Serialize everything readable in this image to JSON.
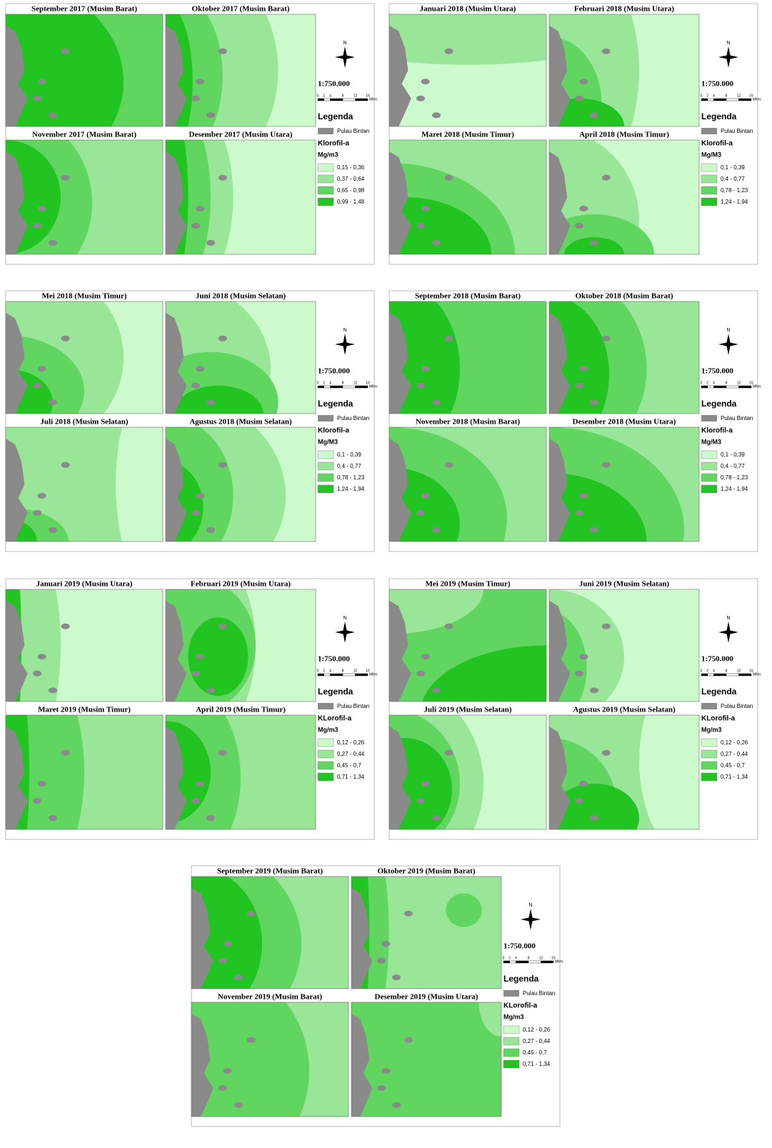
{
  "panels": [
    {
      "maps": [
        "September 2017 (Musim Barat)",
        "Oktober 2017 (Musim Barat)",
        "November 2017 (Musim Barat)",
        "Desember 2017 (Musim Utara)"
      ],
      "north": "N",
      "scale": "1:750.000",
      "scale_bar": {
        "ticks": [
          0,
          2,
          4,
          8,
          12,
          16
        ],
        "unit": "Miles"
      },
      "legend": {
        "title": "Legenda",
        "island": "Pulau Bintan",
        "variable": "Klorofil-a",
        "unit": "Mg/m3",
        "classes": [
          {
            "label": "0,15 - 0,36",
            "color": "#ccfacc"
          },
          {
            "label": "0,37 - 0,64",
            "color": "#99e699"
          },
          {
            "label": "0,65 - 0,98",
            "color": "#60d660"
          },
          {
            "label": "0,99 - 1,48",
            "color": "#22c422"
          }
        ]
      }
    },
    {
      "maps": [
        "Januari 2018 (Musim Utara)",
        "Februari 2018 (Musim Utara)",
        "Maret 2018 (Musim Timur)",
        "April 2018 (Musim Timur)"
      ],
      "north": "N",
      "scale": "1:750.000",
      "scale_bar": {
        "ticks": [
          0,
          2,
          4,
          8,
          12,
          16
        ],
        "unit": "Miles"
      },
      "legend": {
        "title": "Legenda",
        "island": "Pulau Bintan",
        "variable": "Klorofil-a",
        "unit": "Mg/M3",
        "classes": [
          {
            "label": "0,1 - 0,39",
            "color": "#ccfacc"
          },
          {
            "label": "0,4 - 0,77",
            "color": "#99e699"
          },
          {
            "label": "0,78 - 1,23",
            "color": "#60d660"
          },
          {
            "label": "1,24 - 1,94",
            "color": "#22c422"
          }
        ]
      }
    },
    {
      "maps": [
        "Mei 2018 (Musim Timur)",
        "Juni 2018 (Musim Selatan)",
        "Juli 2018 (Musim Selatan)",
        "Agustus 2018 (Musim Selatan)"
      ],
      "north": "N",
      "scale": "1:750.000",
      "scale_bar": {
        "ticks": [
          0,
          2,
          4,
          8,
          12,
          16
        ],
        "unit": "Miles"
      },
      "legend": {
        "title": "Legenda",
        "island": "Pulau Bintan",
        "variable": "Klorofil-a",
        "unit": "Mg/M3",
        "classes": [
          {
            "label": "0,1 - 0,39",
            "color": "#ccfacc"
          },
          {
            "label": "0,4 - 0,77",
            "color": "#99e699"
          },
          {
            "label": "0,78 - 1,23",
            "color": "#60d660"
          },
          {
            "label": "1,24 - 1,94",
            "color": "#22c422"
          }
        ]
      }
    },
    {
      "maps": [
        "September 2018 (Musim Barat)",
        "Oktober 2018 (Musim Barat)",
        "November 2018 (Musim Barat)",
        "Desember 2018 (Musim Utara)"
      ],
      "north": "N",
      "scale": "1:750.000",
      "scale_bar": {
        "ticks": [
          0,
          2,
          4,
          8,
          12,
          16
        ],
        "unit": "Miles"
      },
      "legend": {
        "title": "Legenda",
        "island": "Pulau Bintan",
        "variable": "Klorofil-a",
        "unit": "Mg/M3",
        "classes": [
          {
            "label": "0,1 - 0,39",
            "color": "#ccfacc"
          },
          {
            "label": "0,4 - 0,77",
            "color": "#99e699"
          },
          {
            "label": "0,78 - 1,23",
            "color": "#60d660"
          },
          {
            "label": "1,24 - 1,94",
            "color": "#22c422"
          }
        ]
      }
    },
    {
      "maps": [
        "Januari 2019 (Musim Utara)",
        "Februari 2019 (Musim Utara)",
        "Maret 2019 (Musim Timur)",
        "April 2019 (Musim Timur)"
      ],
      "north": "N",
      "scale": "1:750.000",
      "scale_bar": {
        "ticks": [
          0,
          2,
          4,
          8,
          12,
          16
        ],
        "unit": "Miles"
      },
      "legend": {
        "title": "Legenda",
        "island": "Pulau Bintan",
        "variable": "KLorofil-a",
        "unit": "Mg/m3",
        "classes": [
          {
            "label": "0,12 - 0,26",
            "color": "#ccfacc"
          },
          {
            "label": "0,27 - 0,44",
            "color": "#99e699"
          },
          {
            "label": "0,45 - 0,7",
            "color": "#60d660"
          },
          {
            "label": "0,71 - 1,34",
            "color": "#22c422"
          }
        ]
      }
    },
    {
      "maps": [
        "Mei 2019 (Musim Timur)",
        "Juni 2019 (Musim Selatan)",
        "Juli 2019 (Musim Selatan)",
        "Agustus 2019 (Musim Selatan)"
      ],
      "north": "N",
      "scale": "1:750.000",
      "scale_bar": {
        "ticks": [
          0,
          2,
          4,
          8,
          12,
          16
        ],
        "unit": "Miles"
      },
      "legend": {
        "title": "Legenda",
        "island": "Pulau Bintan",
        "variable": "KLorofil-a",
        "unit": "Mg/m3",
        "classes": [
          {
            "label": "0,12 - 0,26",
            "color": "#ccfacc"
          },
          {
            "label": "0,27 - 0,44",
            "color": "#99e699"
          },
          {
            "label": "0,45 - 0,7",
            "color": "#60d660"
          },
          {
            "label": "0,71 - 1,34",
            "color": "#22c422"
          }
        ]
      }
    },
    {
      "maps": [
        "September 2019 (Musim Barat)",
        "Oktober 2019 (Musim Barat)",
        "November 2019 (Musim Barat)",
        "Desember 2019 (Musim Utara)"
      ],
      "north": "N",
      "scale": "1:750.000",
      "scale_bar": {
        "ticks": [
          0,
          2,
          4,
          8,
          12,
          16
        ],
        "unit": "Miles"
      },
      "legend": {
        "title": "Legenda",
        "island": "Pulau Bintan",
        "variable": "KLorofil-a",
        "unit": "Mg/m3",
        "classes": [
          {
            "label": "0,12 - 0,26",
            "color": "#ccfacc"
          },
          {
            "label": "0,27 - 0,44",
            "color": "#99e699"
          },
          {
            "label": "0,45 - 0,7",
            "color": "#60d660"
          },
          {
            "label": "0,71 - 1,34",
            "color": "#22c422"
          }
        ]
      }
    }
  ]
}
